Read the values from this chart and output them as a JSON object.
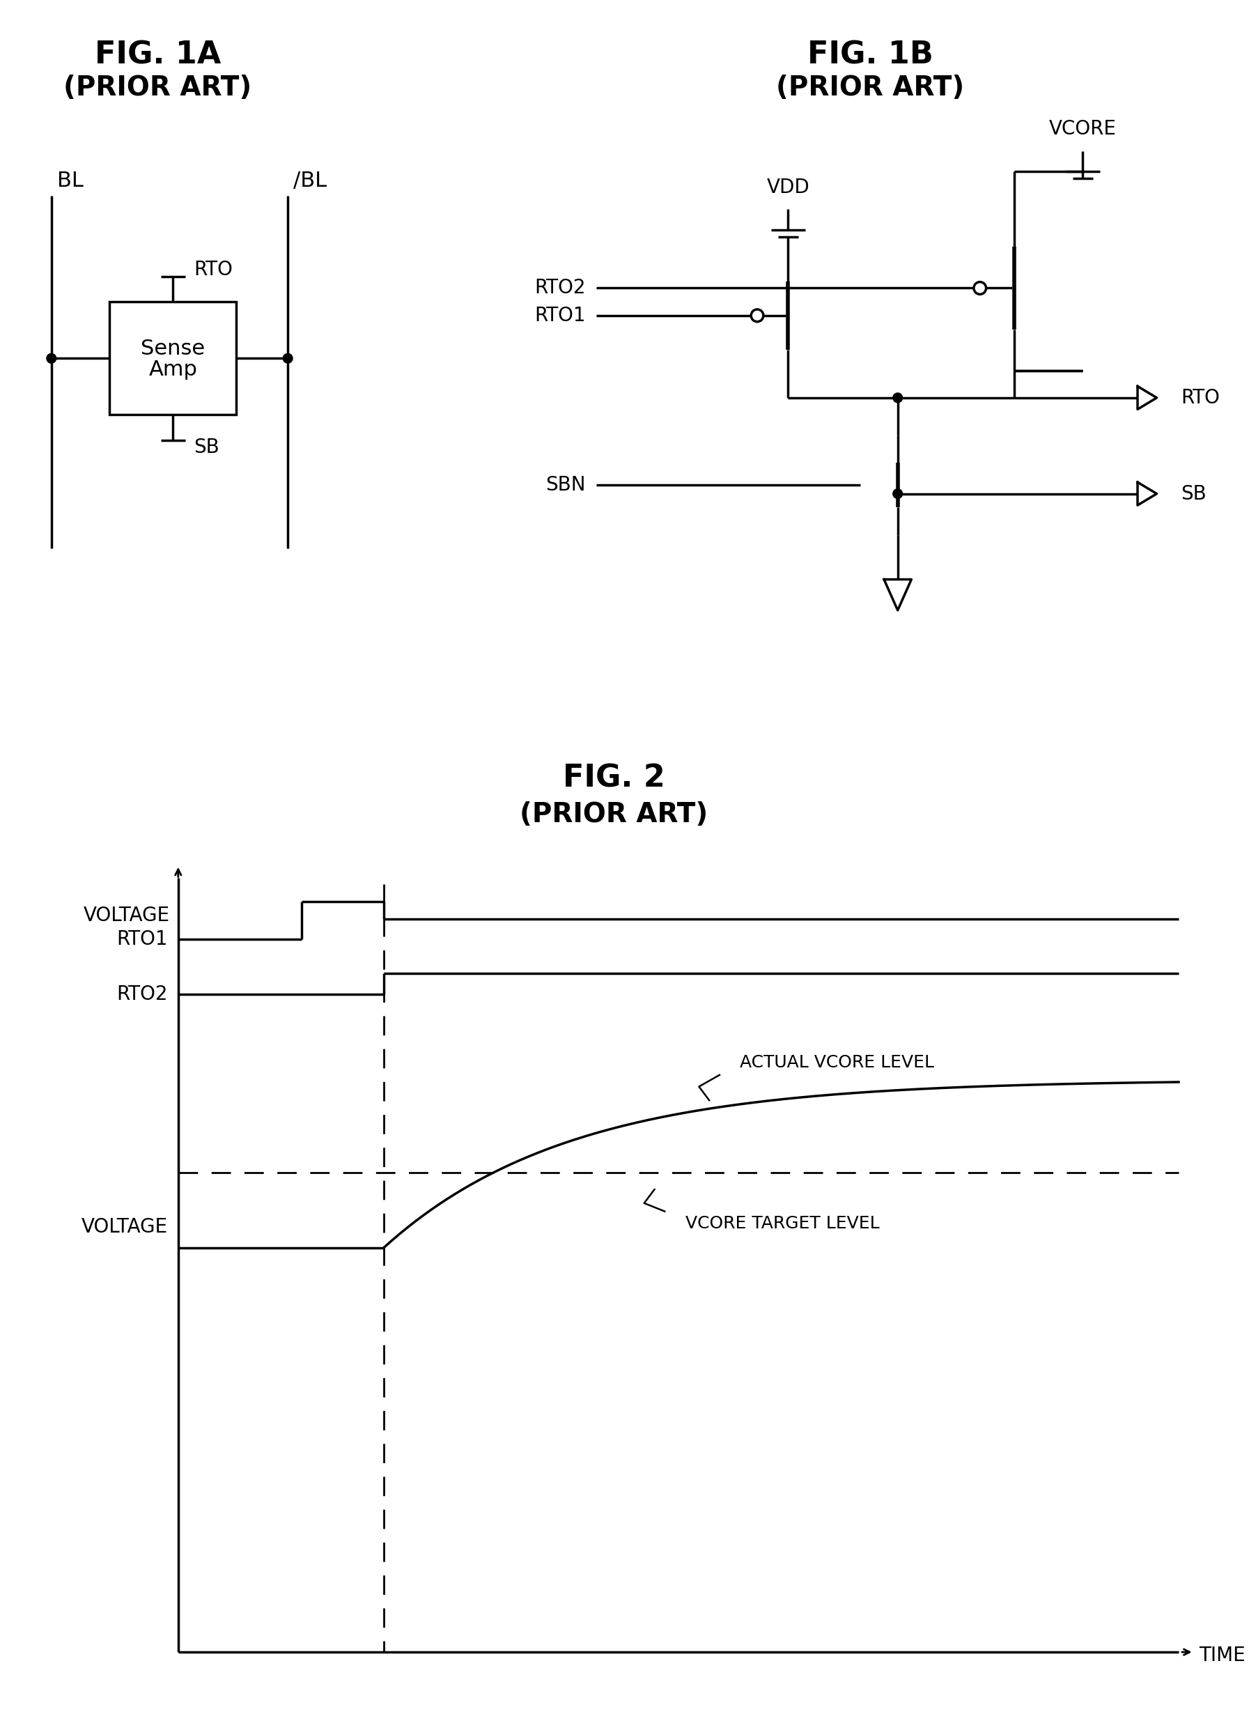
{
  "fig_width": 17.93,
  "fig_height": 24.6,
  "bg_color": "#ffffff",
  "line_color": "#000000",
  "font_family": "DejaVu Sans",
  "fig1a_title": "FIG. 1A",
  "fig1a_subtitle": "(PRIOR ART)",
  "fig1b_title": "FIG. 1B",
  "fig1b_subtitle": "(PRIOR ART)",
  "fig2_title": "FIG. 2",
  "fig2_subtitle": "(PRIOR ART)"
}
